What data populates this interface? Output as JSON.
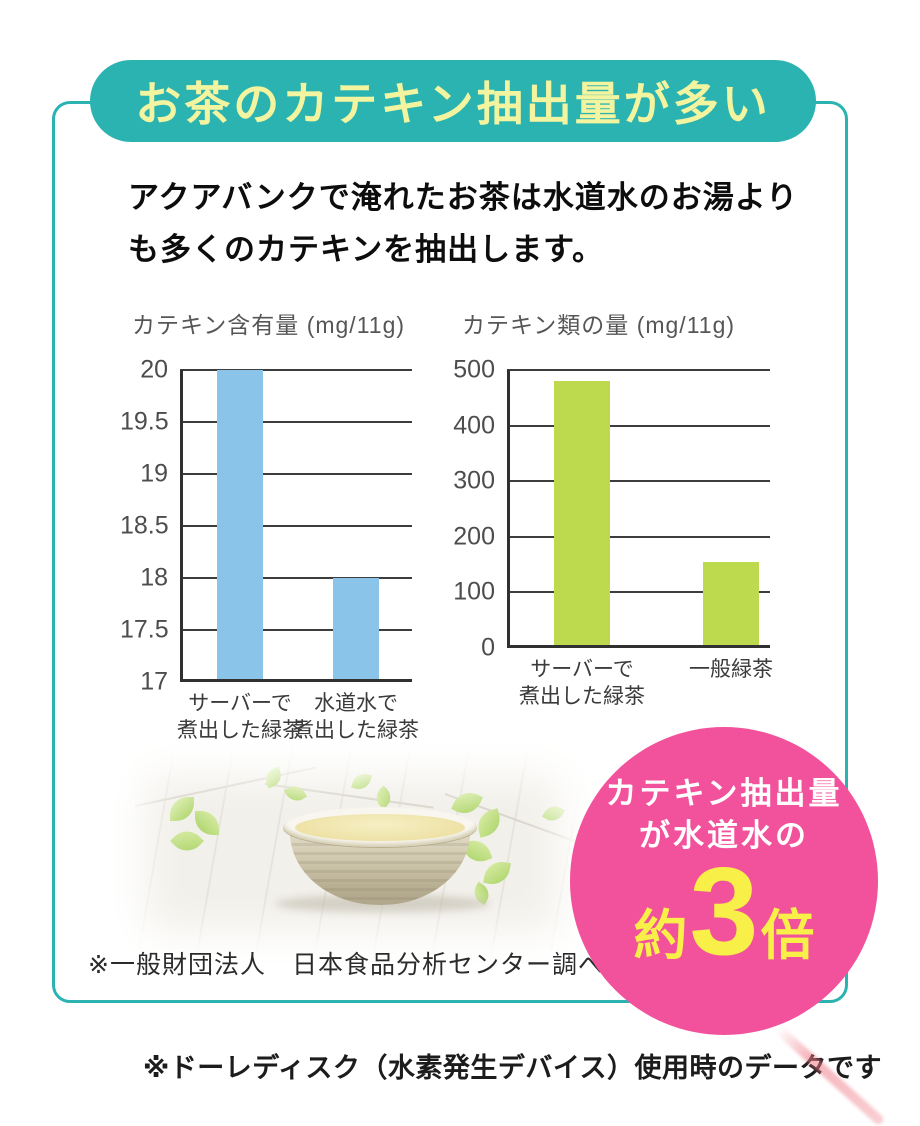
{
  "colors": {
    "teal": "#2ab3b0",
    "banner_text": "#f3f4a0",
    "blue_bar": "#8ac4e9",
    "green_bar": "#bdd94d",
    "pink": "#f2529b",
    "badge_number_yellow": "#f8ef48"
  },
  "banner": {
    "title": "お茶のカテキン抽出量が多い"
  },
  "intro": {
    "line1": "アクアバンクで淹れたお茶は水道水のお湯より",
    "line2": "も多くのカテキンを抽出します。"
  },
  "chart_data": [
    {
      "type": "bar",
      "title": "カテキン含有量 (mg/11g)",
      "categories": [
        [
          "サーバーで",
          "煮出した緑茶"
        ],
        [
          "水道水で",
          "煮出した緑茶"
        ]
      ],
      "values": [
        20,
        18
      ],
      "ylim": [
        17,
        20
      ],
      "yticks": [
        17,
        17.5,
        18,
        18.5,
        19,
        19.5,
        20
      ],
      "bar_color": "#8ac4e9",
      "grid": true,
      "legend_position": "none"
    },
    {
      "type": "bar",
      "title": "カテキン類の量 (mg/11g)",
      "categories": [
        [
          "サーバーで",
          "煮出した緑茶"
        ],
        [
          "一般緑茶"
        ]
      ],
      "values": [
        480,
        155
      ],
      "ylim": [
        0,
        500
      ],
      "yticks": [
        0,
        100,
        200,
        300,
        400,
        500
      ],
      "bar_color": "#bdd94d",
      "grid": true,
      "legend_position": "none"
    }
  ],
  "badge": {
    "line1": "カテキン抽出量",
    "line2": "が水道水の",
    "approx": "約",
    "number": "3",
    "times": "倍"
  },
  "source_note": "※一般財団法人　日本食品分析センター調べ",
  "footer_note": "※ドーレディスク（水素発生デバイス）使用時のデータです"
}
